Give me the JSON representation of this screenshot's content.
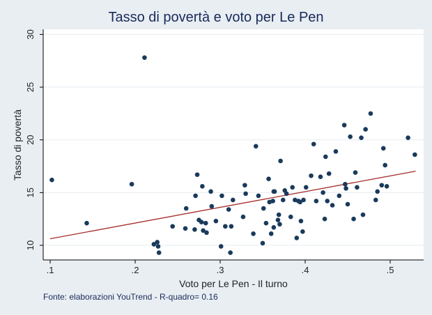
{
  "chart_data": {
    "type": "scatter",
    "title": "Tasso di povertà e voto per Le Pen",
    "xlabel": "Voto per Le Pen - Il turno",
    "ylabel": "Tasso di povertà",
    "xlim": [
      0.1,
      0.53
    ],
    "ylim": [
      9.3,
      30
    ],
    "x_ticks": [
      0.1,
      0.2,
      0.3,
      0.4,
      0.5
    ],
    "x_tick_labels": [
      ".1",
      ".2",
      ".3",
      ".4",
      ".5"
    ],
    "y_ticks": [
      10,
      15,
      20,
      25,
      30
    ],
    "y_tick_labels": [
      "10",
      "15",
      "20",
      "25",
      "30"
    ],
    "grid": "horizontal",
    "legend": "none",
    "note": "Fonte: elaborazioni YouTrend - R-quadro= 0.16",
    "colors": {
      "background": "#e8eef2",
      "plot_bg": "#ffffff",
      "points": "#1a3a5c",
      "fit_line": "#a52a2a",
      "title": "#1a2a5a"
    },
    "points": [
      [
        0.102,
        16.2
      ],
      [
        0.143,
        12.1
      ],
      [
        0.196,
        15.8
      ],
      [
        0.211,
        27.8
      ],
      [
        0.222,
        10.1
      ],
      [
        0.226,
        10.3
      ],
      [
        0.227,
        9.9
      ],
      [
        0.228,
        9.3
      ],
      [
        0.244,
        11.8
      ],
      [
        0.259,
        11.6
      ],
      [
        0.26,
        13.5
      ],
      [
        0.27,
        11.5
      ],
      [
        0.271,
        14.7
      ],
      [
        0.273,
        16.7
      ],
      [
        0.275,
        12.4
      ],
      [
        0.278,
        12.2
      ],
      [
        0.279,
        15.6
      ],
      [
        0.28,
        11.4
      ],
      [
        0.283,
        12.1
      ],
      [
        0.284,
        11.2
      ],
      [
        0.289,
        15.1
      ],
      [
        0.29,
        13.7
      ],
      [
        0.295,
        12.3
      ],
      [
        0.301,
        9.9
      ],
      [
        0.302,
        14.7
      ],
      [
        0.306,
        11.8
      ],
      [
        0.31,
        13.4
      ],
      [
        0.312,
        9.3
      ],
      [
        0.313,
        11.8
      ],
      [
        0.315,
        14.3
      ],
      [
        0.327,
        12.7
      ],
      [
        0.329,
        15.7
      ],
      [
        0.33,
        14.9
      ],
      [
        0.339,
        11.1
      ],
      [
        0.342,
        19.4
      ],
      [
        0.345,
        14.7
      ],
      [
        0.35,
        10.2
      ],
      [
        0.351,
        13.5
      ],
      [
        0.354,
        12.1
      ],
      [
        0.357,
        16.3
      ],
      [
        0.358,
        14.1
      ],
      [
        0.36,
        11.1
      ],
      [
        0.362,
        14.2
      ],
      [
        0.363,
        11.7
      ],
      [
        0.363,
        15.1
      ],
      [
        0.364,
        15.1
      ],
      [
        0.368,
        12.4
      ],
      [
        0.369,
        12.9
      ],
      [
        0.37,
        12.0
      ],
      [
        0.371,
        18.0
      ],
      [
        0.374,
        14.3
      ],
      [
        0.376,
        15.2
      ],
      [
        0.378,
        14.9
      ],
      [
        0.383,
        12.7
      ],
      [
        0.385,
        15.5
      ],
      [
        0.388,
        14.3
      ],
      [
        0.39,
        10.7
      ],
      [
        0.392,
        14.2
      ],
      [
        0.394,
        14.1
      ],
      [
        0.395,
        12.3
      ],
      [
        0.397,
        11.3
      ],
      [
        0.398,
        14.3
      ],
      [
        0.401,
        15.5
      ],
      [
        0.407,
        16.6
      ],
      [
        0.41,
        19.6
      ],
      [
        0.413,
        14.2
      ],
      [
        0.418,
        16.5
      ],
      [
        0.421,
        15.0
      ],
      [
        0.423,
        12.5
      ],
      [
        0.424,
        18.4
      ],
      [
        0.426,
        14.2
      ],
      [
        0.428,
        16.8
      ],
      [
        0.432,
        13.8
      ],
      [
        0.436,
        18.9
      ],
      [
        0.44,
        14.7
      ],
      [
        0.446,
        21.4
      ],
      [
        0.447,
        15.8
      ],
      [
        0.448,
        15.4
      ],
      [
        0.45,
        13.9
      ],
      [
        0.453,
        20.3
      ],
      [
        0.457,
        12.5
      ],
      [
        0.459,
        16.9
      ],
      [
        0.461,
        15.5
      ],
      [
        0.466,
        20.2
      ],
      [
        0.468,
        12.9
      ],
      [
        0.471,
        21.0
      ],
      [
        0.477,
        22.5
      ],
      [
        0.483,
        14.3
      ],
      [
        0.485,
        15.1
      ],
      [
        0.49,
        15.7
      ],
      [
        0.492,
        19.2
      ],
      [
        0.494,
        17.6
      ],
      [
        0.496,
        15.6
      ],
      [
        0.521,
        20.2
      ],
      [
        0.529,
        18.6
      ]
    ],
    "fit_line": {
      "x": [
        0.1,
        0.53
      ],
      "y": [
        10.62,
        17.03
      ]
    }
  }
}
